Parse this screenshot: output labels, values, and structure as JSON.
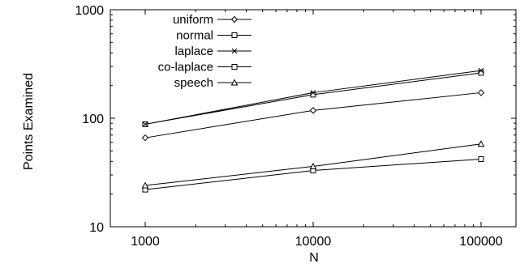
{
  "chart_data": {
    "type": "line",
    "xlabel": "N",
    "ylabel": "Points Examined",
    "xscale": "log",
    "yscale": "log",
    "xlim": [
      1000,
      100000
    ],
    "ylim": [
      10,
      1000
    ],
    "x_ticks": [
      1000,
      10000,
      100000
    ],
    "x_tick_labels": [
      "1000",
      "10000",
      "100000"
    ],
    "y_ticks": [
      10,
      100,
      1000
    ],
    "y_tick_labels": [
      "10",
      "100",
      "1000"
    ],
    "grid": false,
    "legend_position": "top-left",
    "x": [
      1000,
      10000,
      100000
    ],
    "series": [
      {
        "name": "uniform",
        "marker": "diamond",
        "values": [
          66,
          118,
          172
        ]
      },
      {
        "name": "normal",
        "marker": "square",
        "values": [
          88,
          165,
          262
        ]
      },
      {
        "name": "laplace",
        "marker": "cross",
        "values": [
          88,
          172,
          275
        ]
      },
      {
        "name": "co-laplace",
        "marker": "square",
        "values": [
          22,
          33,
          42
        ]
      },
      {
        "name": "speech",
        "marker": "triangle",
        "values": [
          24,
          36,
          58
        ]
      }
    ]
  }
}
